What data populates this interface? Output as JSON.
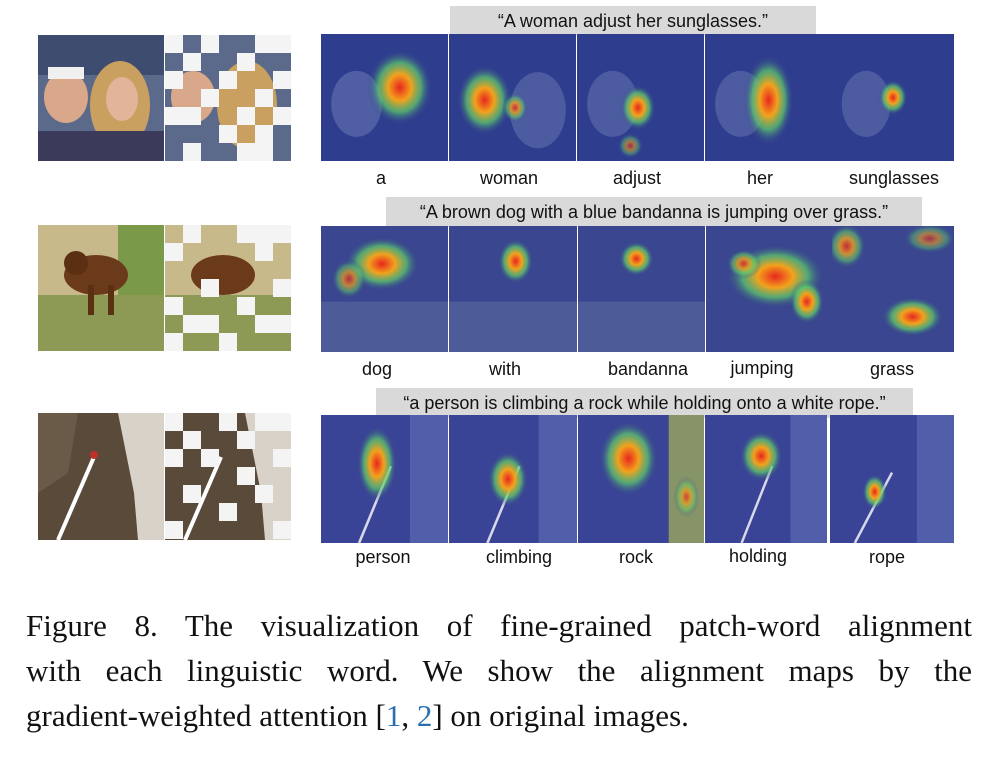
{
  "rows": [
    {
      "sentence": "“A woman adjust her sunglasses.”",
      "words": [
        "a",
        "woman",
        "adjust",
        "her",
        "sunglasses"
      ]
    },
    {
      "sentence": "“A brown dog with a blue bandanna is jumping over grass.”",
      "words": [
        "dog",
        "with",
        "bandanna",
        "jumping",
        "grass"
      ]
    },
    {
      "sentence": "“a person is climbing a rock while holding onto a white rope.”",
      "words": [
        "person",
        "climbing",
        "rock",
        "holding",
        "rope"
      ]
    }
  ],
  "caption": {
    "line1": "Figure 8.  The visualization of fine-grained patch-word alignment",
    "line2": "with each linguistic word.  We show the alignment maps by the",
    "line3_pre": "gradient-weighted attention [",
    "cite1": "1",
    "sep": ", ",
    "cite2": "2",
    "line3_post": "] on original images."
  },
  "colors": {
    "heatmap_base": "#2b2f8f",
    "hot": "#e8261f",
    "caption_box": "#d9d9d9",
    "citation": "#2a6fb0"
  }
}
